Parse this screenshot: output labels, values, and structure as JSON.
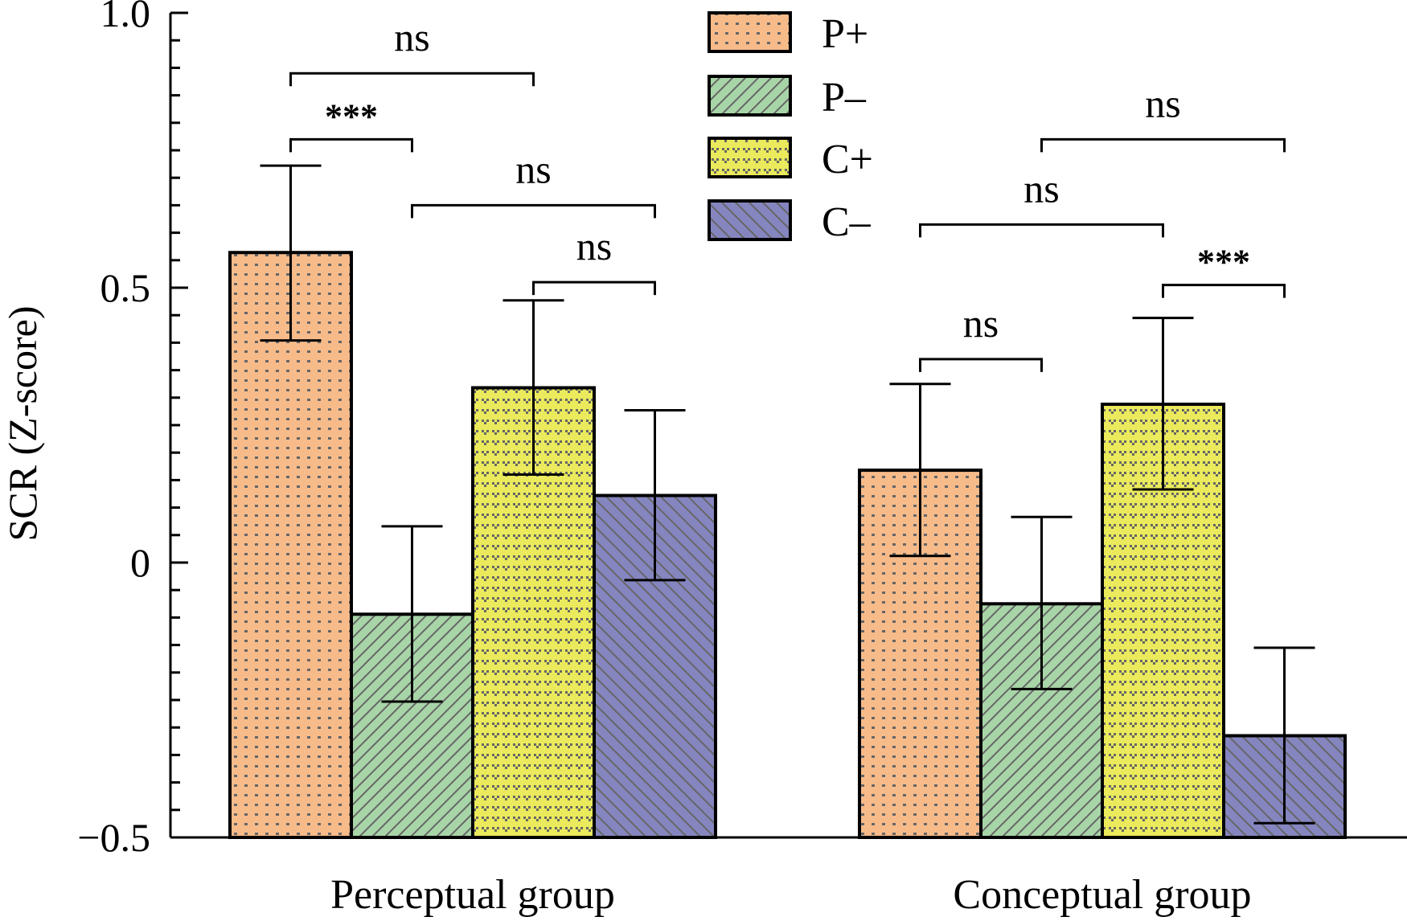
{
  "chart_data": {
    "type": "bar",
    "title": "",
    "xlabel": "",
    "ylabel": "SCR (Z-score)",
    "ylim": [
      -0.5,
      1.0
    ],
    "yticks": [
      {
        "value": 1.0,
        "label": "1.0"
      },
      {
        "value": 0.5,
        "label": "0.5"
      },
      {
        "value": 0,
        "label": "0"
      },
      {
        "value": -0.5,
        "label": "−0.5"
      }
    ],
    "minor_tick_step": 0.05,
    "grid": false,
    "legend_position": "top-center",
    "categories": [
      "Perceptual group",
      "Conceptual group"
    ],
    "series": [
      {
        "name": "P+",
        "color": "#f7bb8a",
        "pattern": "dots",
        "values": [
          0.564,
          0.168
        ],
        "err_upper": [
          0.722,
          0.325
        ],
        "err_lower": [
          0.404,
          0.012
        ]
      },
      {
        "name": "P–",
        "color": "#a8d5a8",
        "pattern": "hatch-right",
        "values": [
          -0.094,
          -0.075
        ],
        "err_upper": [
          0.066,
          0.083
        ],
        "err_lower": [
          -0.253,
          -0.23
        ]
      },
      {
        "name": "C+",
        "color": "#eaea5c",
        "pattern": "checks",
        "values": [
          0.318,
          0.288
        ],
        "err_upper": [
          0.477,
          0.445
        ],
        "err_lower": [
          0.16,
          0.133
        ]
      },
      {
        "name": "C–",
        "color": "#8585c0",
        "pattern": "hatch-left",
        "values": [
          0.122,
          -0.315
        ],
        "err_upper": [
          0.277,
          -0.155
        ],
        "err_lower": [
          -0.032,
          -0.474
        ]
      }
    ],
    "annotations": [
      {
        "group": 0,
        "from": 0,
        "to": 2,
        "level": 0.89,
        "label": "ns"
      },
      {
        "group": 0,
        "from": 0,
        "to": 1,
        "level": 0.77,
        "label": "***"
      },
      {
        "group": 0,
        "from": 1,
        "to": 3,
        "level": 0.65,
        "label": "ns"
      },
      {
        "group": 0,
        "from": 2,
        "to": 3,
        "level": 0.51,
        "label": "ns"
      },
      {
        "group": 1,
        "from": 1,
        "to": 3,
        "level": 0.77,
        "label": "ns"
      },
      {
        "group": 1,
        "from": 0,
        "to": 2,
        "level": 0.615,
        "label": "ns"
      },
      {
        "group": 1,
        "from": 2,
        "to": 3,
        "level": 0.505,
        "label": "***"
      },
      {
        "group": 1,
        "from": 0,
        "to": 1,
        "level": 0.37,
        "label": "ns"
      }
    ]
  }
}
